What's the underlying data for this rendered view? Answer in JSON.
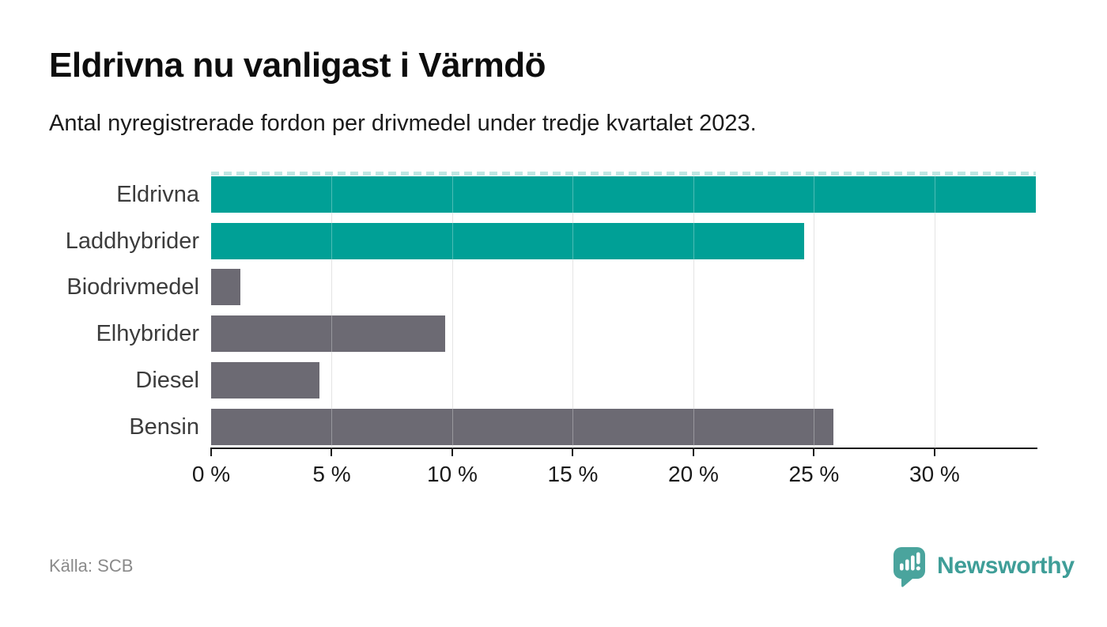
{
  "title": "Eldrivna nu vanligast i Värmdö",
  "subtitle": "Antal nyregistrerade fordon per drivmedel under tredje kvartalet 2023.",
  "source": "Källa: SCB",
  "brand": {
    "name": "Newsworthy",
    "color": "#3f9e98"
  },
  "colors": {
    "highlight": "#00a096",
    "neutral": "#6c6a73",
    "gridline": "#d9d9d9",
    "axis": "#1a1a1a",
    "truncation_dash": "#bfe6e3",
    "category_label": "#3c3c3c",
    "source_text": "#8a8a8a"
  },
  "chart_data": {
    "type": "bar",
    "orientation": "horizontal",
    "title": "Eldrivna nu vanligast i Värmdö",
    "subtitle": "Antal nyregistrerade fordon per drivmedel under tredje kvartalet 2023.",
    "categories": [
      "Eldrivna",
      "Laddhybrider",
      "Biodrivmedel",
      "Elhybrider",
      "Diesel",
      "Bensin"
    ],
    "values": [
      34.2,
      24.6,
      1.2,
      9.7,
      4.5,
      25.8
    ],
    "unit": "%",
    "bar_color_roles": [
      "highlight",
      "highlight",
      "neutral",
      "neutral",
      "neutral",
      "neutral"
    ],
    "xlim": [
      0,
      34.2
    ],
    "x_ticks": [
      0,
      5,
      10,
      15,
      20,
      25,
      30
    ],
    "x_tick_labels": [
      "0 %",
      "5 %",
      "10 %",
      "15 %",
      "20 %",
      "25 %",
      "30 %"
    ],
    "grid": "vertical",
    "legend": "none",
    "top_bar_truncated": true
  }
}
